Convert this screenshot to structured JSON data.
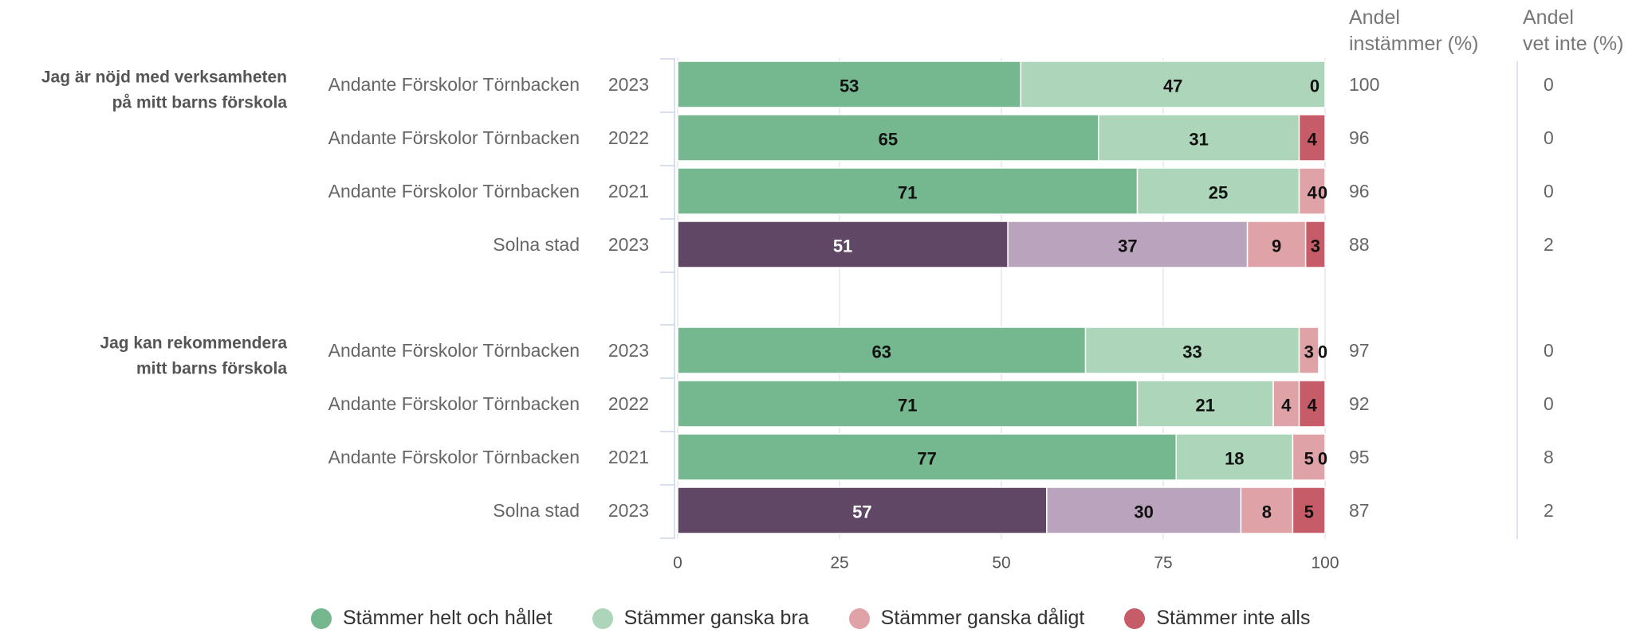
{
  "chart_data": {
    "type": "bar",
    "orientation": "horizontal",
    "stacked": true,
    "xlim": [
      0,
      100
    ],
    "x_ticks": [
      "0",
      "25",
      "50",
      "75",
      "100"
    ],
    "grid": true,
    "legend_position": "bottom",
    "column_headers": {
      "agree": [
        "Andel",
        "instämmer (%)"
      ],
      "unknown": [
        "Andel",
        "vet inte (%)"
      ]
    },
    "series": [
      {
        "name": "Stämmer helt och hållet",
        "color": "#75b78f",
        "color_alt": "#5f4765"
      },
      {
        "name": "Stämmer ganska bra",
        "color": "#acd5b9",
        "color_alt": "#b9a3bd"
      },
      {
        "name": "Stämmer ganska dåligt",
        "color": "#dea2a7",
        "color_alt": "#dea2a7"
      },
      {
        "name": "Stämmer inte alls",
        "color": "#c65c68",
        "color_alt": "#c65c68"
      }
    ],
    "groups": [
      {
        "question": [
          "Jag är nöjd med verksamheten",
          "på mitt barns förskola"
        ],
        "rows": [
          {
            "unit": "Andante Förskolor Törnbacken",
            "year": "2023",
            "values": [
              53,
              47,
              0,
              0
            ],
            "agree": "100",
            "unknown": "0",
            "alt": false,
            "data_labels": [
              "53",
              "47",
              "0",
              ""
            ]
          },
          {
            "unit": "Andante Förskolor Törnbacken",
            "year": "2022",
            "values": [
              65,
              31,
              0,
              4
            ],
            "agree": "96",
            "unknown": "0",
            "alt": false,
            "data_labels": [
              "65",
              "31",
              "0",
              "4"
            ]
          },
          {
            "unit": "Andante Förskolor Törnbacken",
            "year": "2021",
            "values": [
              71,
              25,
              4,
              0
            ],
            "agree": "96",
            "unknown": "0",
            "alt": false,
            "data_labels": [
              "71",
              "25",
              "4",
              "0"
            ]
          },
          {
            "unit": "Solna stad",
            "year": "2023",
            "values": [
              51,
              37,
              9,
              3
            ],
            "agree": "88",
            "unknown": "2",
            "alt": true,
            "data_labels": [
              "51",
              "37",
              "9",
              "3"
            ]
          }
        ]
      },
      {
        "question": [
          "Jag kan rekommendera",
          "mitt barns förskola"
        ],
        "rows": [
          {
            "unit": "Andante Förskolor Törnbacken",
            "year": "2023",
            "values": [
              63,
              33,
              3,
              0
            ],
            "agree": "97",
            "unknown": "0",
            "alt": false,
            "data_labels": [
              "63",
              "33",
              "3",
              "0"
            ]
          },
          {
            "unit": "Andante Förskolor Törnbacken",
            "year": "2022",
            "values": [
              71,
              21,
              4,
              4
            ],
            "agree": "92",
            "unknown": "0",
            "alt": false,
            "data_labels": [
              "71",
              "21",
              "4",
              "4"
            ]
          },
          {
            "unit": "Andante Förskolor Törnbacken",
            "year": "2021",
            "values": [
              77,
              18,
              5,
              0
            ],
            "agree": "95",
            "unknown": "8",
            "alt": false,
            "data_labels": [
              "77",
              "18",
              "5",
              "0"
            ]
          },
          {
            "unit": "Solna stad",
            "year": "2023",
            "values": [
              57,
              30,
              8,
              5
            ],
            "agree": "87",
            "unknown": "2",
            "alt": true,
            "data_labels": [
              "57",
              "30",
              "8",
              "5"
            ]
          }
        ]
      }
    ]
  }
}
